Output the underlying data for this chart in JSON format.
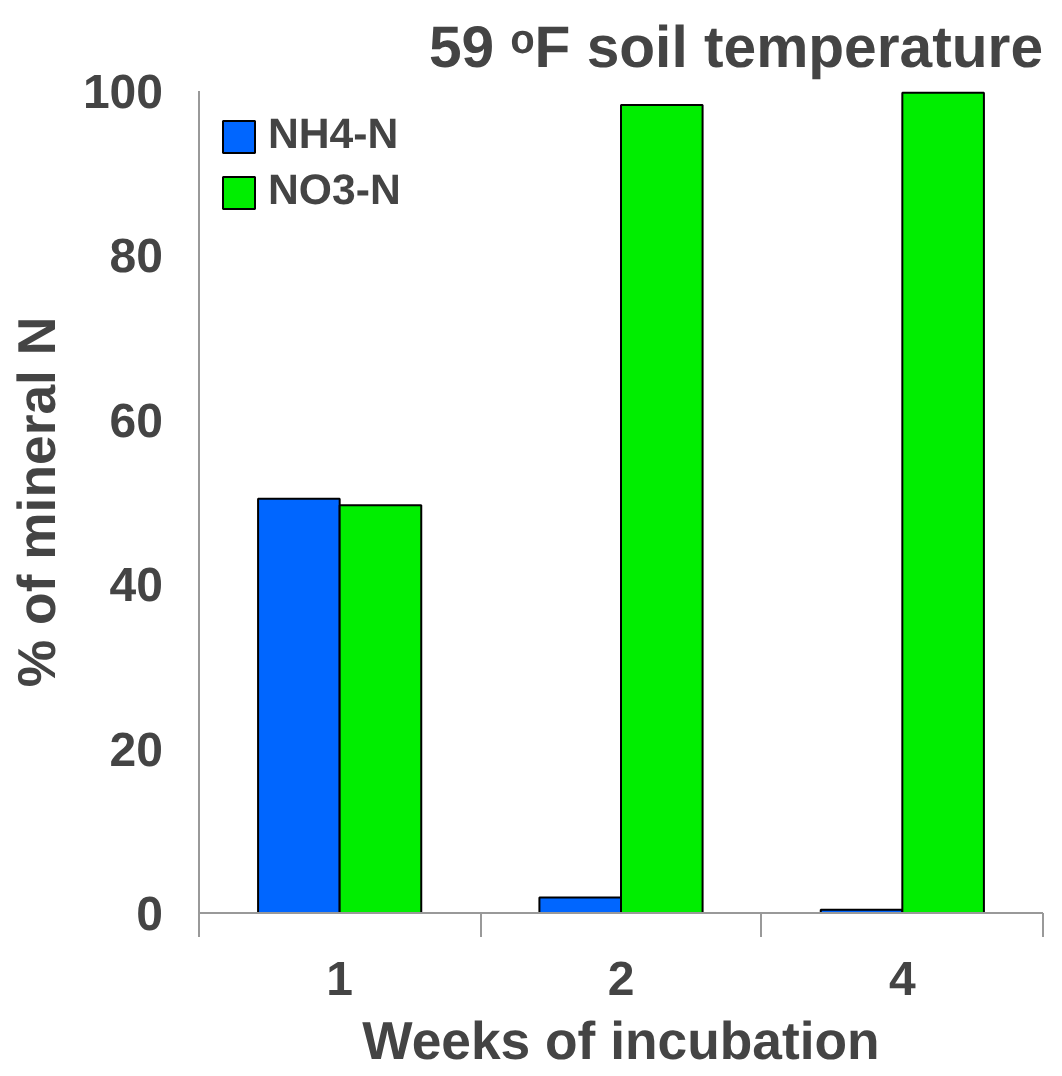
{
  "chart_data": {
    "type": "bar",
    "title": "59 ᵒF soil temperature",
    "xlabel": "Weeks of incubation",
    "ylabel": "% of mineral N",
    "categories": [
      "1",
      "2",
      "4"
    ],
    "series": [
      {
        "name": "NH4-N",
        "color": "#0066ff",
        "values": [
          50.4,
          1.9,
          0.4
        ]
      },
      {
        "name": "NO3-N",
        "color": "#00ee00",
        "values": [
          49.6,
          98.3,
          99.8
        ]
      }
    ],
    "ylim": [
      0,
      100
    ],
    "yticks": [
      0,
      20,
      40,
      60,
      80,
      100
    ],
    "grid": false,
    "legend": "top left"
  }
}
